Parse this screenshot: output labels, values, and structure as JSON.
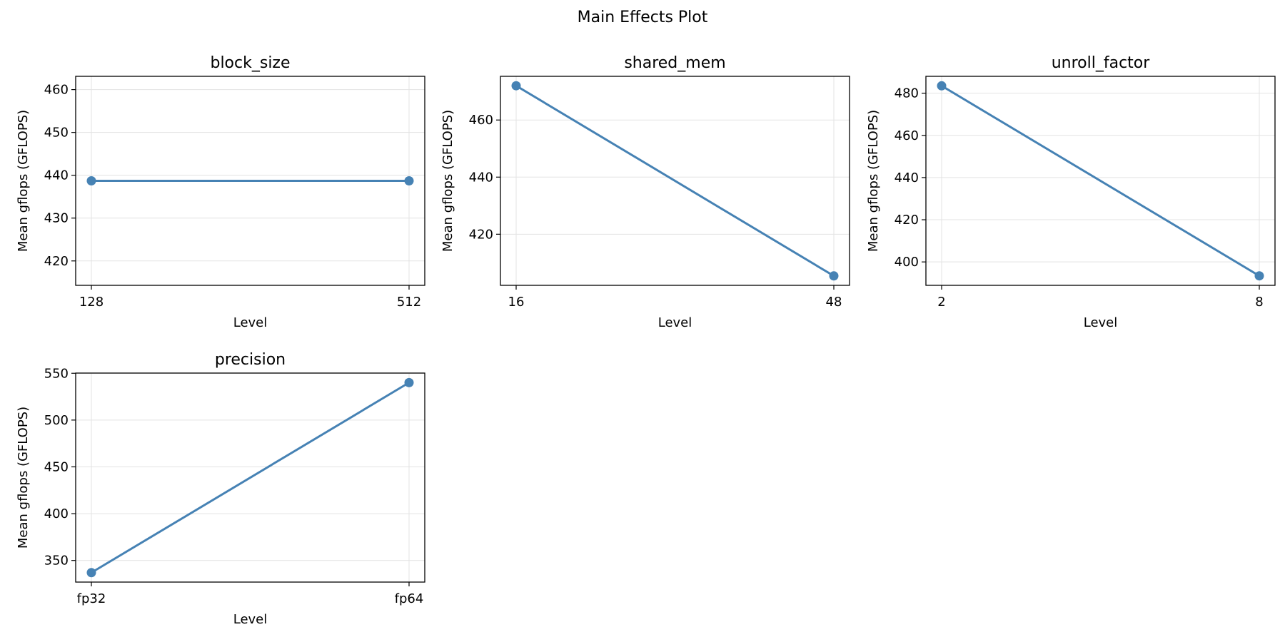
{
  "figure": {
    "title": "Main Effects Plot"
  },
  "colors": {
    "line": "#4682b4",
    "grid": "#e3e3e3",
    "frame": "#000000"
  },
  "chart_data": [
    {
      "type": "line",
      "title": "block_size",
      "xlabel": "Level",
      "ylabel": "Mean gflops (GFLOPS)",
      "categories": [
        "128",
        "512"
      ],
      "values": [
        438.7,
        438.7
      ],
      "ylim": [
        414.3,
        463.1
      ],
      "yticks": [
        420,
        430,
        440,
        450,
        460
      ],
      "grid": true
    },
    {
      "type": "line",
      "title": "shared_mem",
      "xlabel": "Level",
      "ylabel": "Mean gflops (GFLOPS)",
      "categories": [
        "16",
        "48"
      ],
      "values": [
        472.0,
        405.4
      ],
      "ylim": [
        402.1,
        475.3
      ],
      "yticks": [
        420,
        440,
        460
      ],
      "grid": true
    },
    {
      "type": "line",
      "title": "unroll_factor",
      "xlabel": "Level",
      "ylabel": "Mean gflops (GFLOPS)",
      "categories": [
        "2",
        "8"
      ],
      "values": [
        483.5,
        393.4
      ],
      "ylim": [
        388.9,
        488.0
      ],
      "yticks": [
        400,
        420,
        440,
        460,
        480
      ],
      "grid": true
    },
    {
      "type": "line",
      "title": "precision",
      "xlabel": "Level",
      "ylabel": "Mean gflops (GFLOPS)",
      "categories": [
        "fp32",
        "fp64"
      ],
      "values": [
        337.0,
        540.0
      ],
      "ylim": [
        326.9,
        550.2
      ],
      "yticks": [
        350,
        400,
        450,
        500,
        550
      ],
      "grid": true
    }
  ]
}
